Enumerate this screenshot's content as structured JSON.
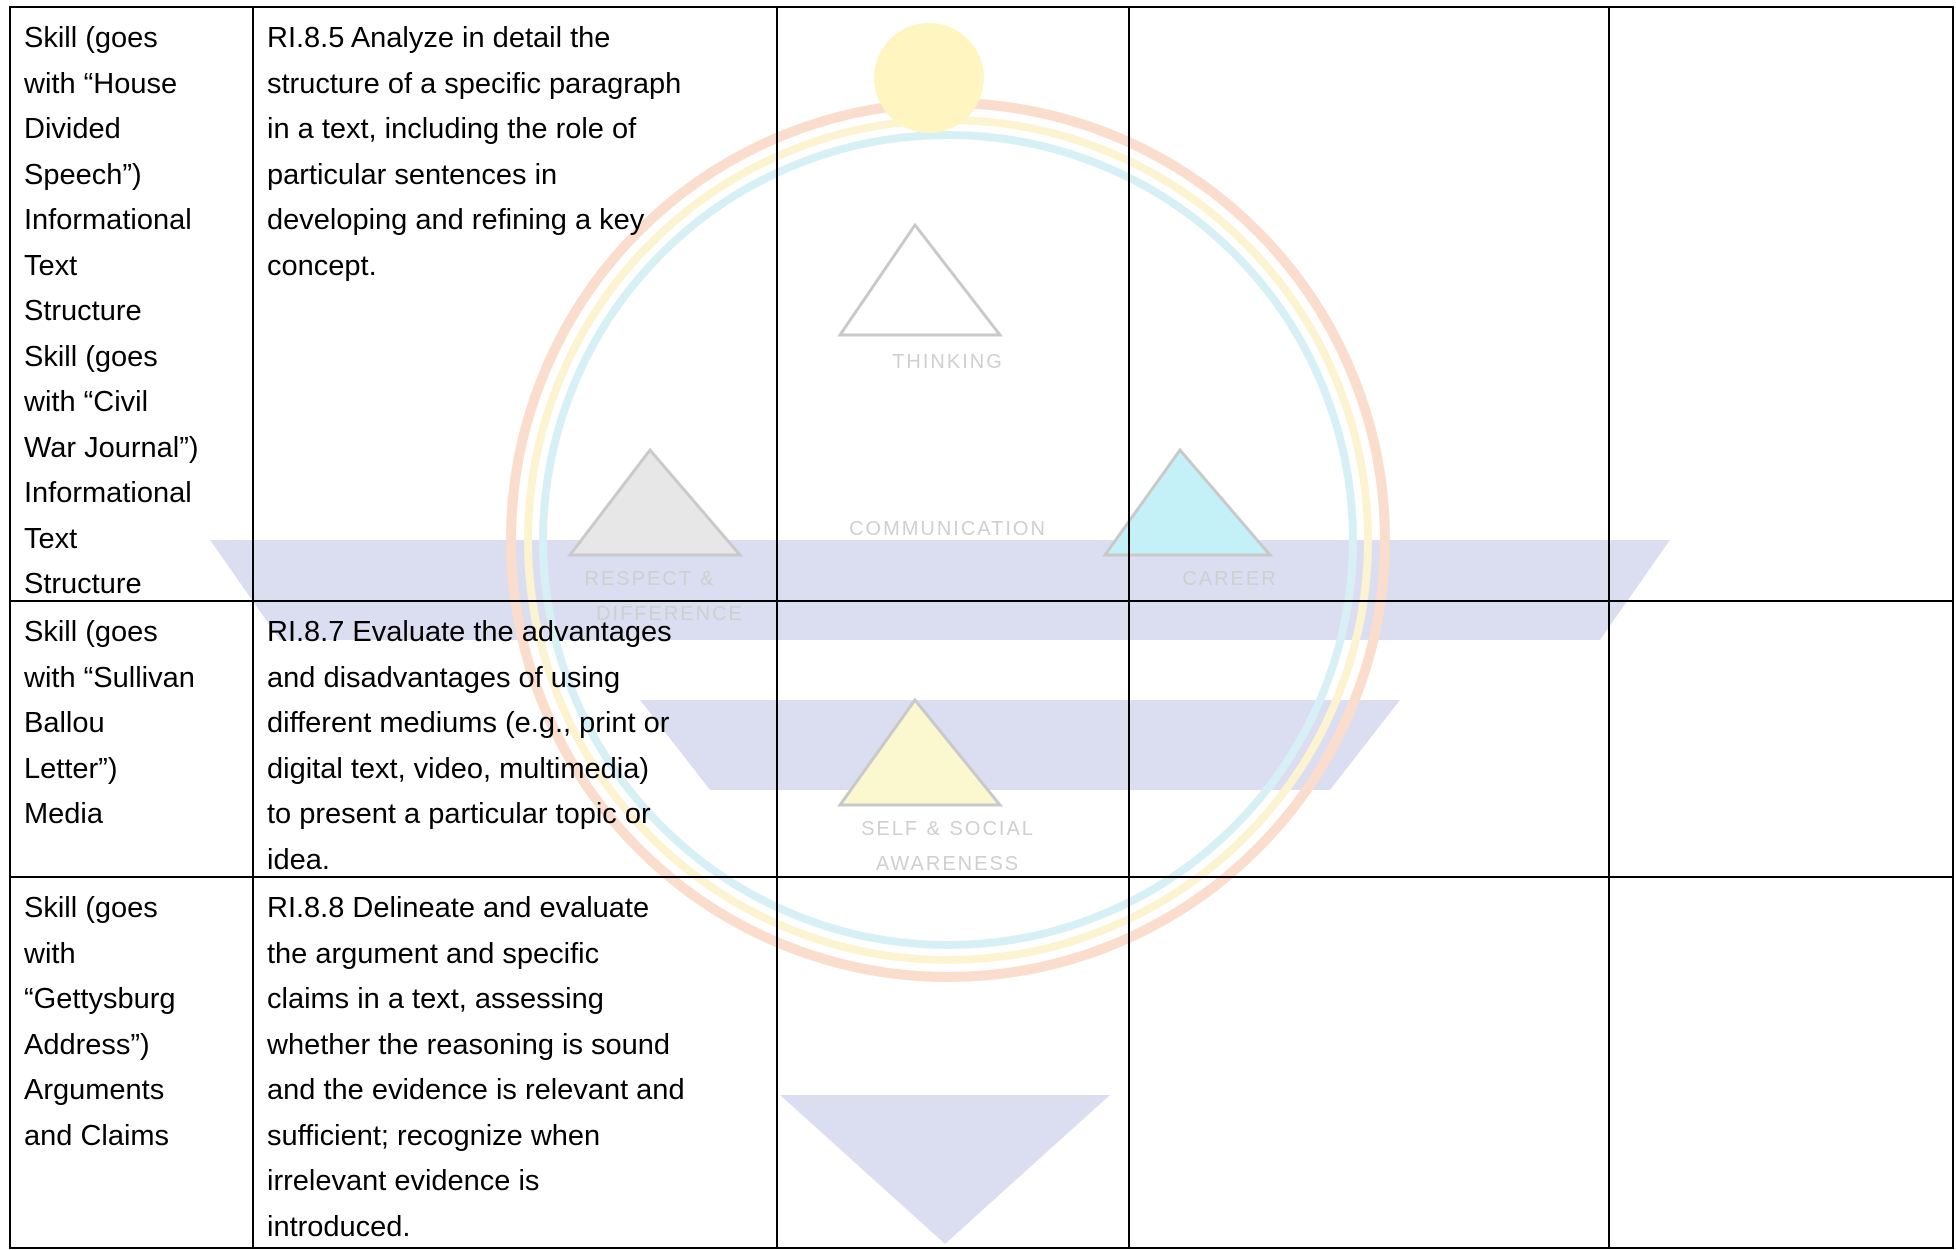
{
  "table": {
    "rows": [
      [
        [
          "Skill (goes",
          "with “House",
          "Divided",
          "Speech”)",
          "Informational",
          "Text",
          "Structure",
          "Skill (goes",
          "with “Civil",
          "War Journal”)",
          "Informational",
          "Text",
          "Structure"
        ],
        [
          "RI.8.5 Analyze in detail the",
          "structure of a specific paragraph",
          "in a text, including the role of",
          "particular sentences in",
          "developing and refining a key",
          "concept."
        ],
        [],
        [],
        []
      ],
      [
        [
          "Skill (goes",
          "with “Sullivan",
          "Ballou",
          "Letter”)",
          "Media"
        ],
        [
          "RI.8.7 Evaluate the advantages",
          "and disadvantages of using",
          "different mediums (e.g., print or",
          "digital text, video, multimedia)",
          "to present a particular topic or",
          "idea."
        ],
        [],
        [],
        []
      ],
      [
        [
          "Skill (goes",
          "with",
          "“Gettysburg",
          "Address”)",
          "Arguments",
          "and Claims"
        ],
        [
          "RI.8.8 Delineate and evaluate",
          "the argument and specific",
          "claims in a text, assessing",
          "whether the reasoning is sound",
          "and the evidence is relevant and",
          "sufficient; recognize when",
          "irrelevant evidence is",
          "introduced."
        ],
        [],
        [],
        []
      ]
    ]
  },
  "watermark": {
    "labels": [
      "THINKING",
      "COMMUNICATION",
      "RESPECT &",
      "DIFFERENCE",
      "CAREER",
      "SELF & SOCIAL",
      "AWARENESS"
    ]
  }
}
